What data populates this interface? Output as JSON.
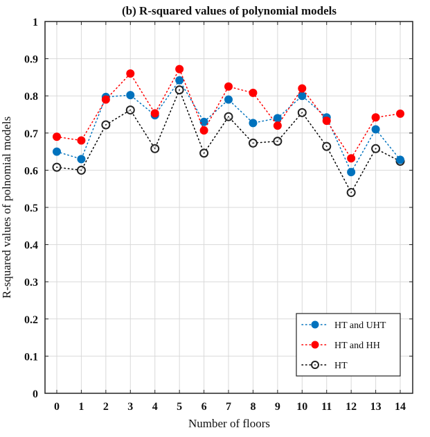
{
  "chart_data": {
    "type": "line",
    "title": "(b) R-squared values of polynomial models",
    "xlabel": "Number of floors",
    "ylabel": "R-squared values of polnomial models",
    "x": [
      0,
      1,
      2,
      3,
      4,
      5,
      6,
      7,
      8,
      9,
      10,
      11,
      12,
      13,
      14
    ],
    "xticks": [
      "0",
      "1",
      "2",
      "3",
      "4",
      "5",
      "6",
      "7",
      "8",
      "9",
      "10",
      "11",
      "12",
      "13",
      "14"
    ],
    "yticks": [
      "0",
      "0.1",
      "0.2",
      "0.3",
      "0.4",
      "0.5",
      "0.6",
      "0.7",
      "0.8",
      "0.9",
      "1"
    ],
    "xlim": [
      -0.5,
      15
    ],
    "ylim": [
      0,
      1
    ],
    "grid": true,
    "legend_position": "bottom-right",
    "series": [
      {
        "name": "HT and UHT",
        "color": "#0072BD",
        "marker": "filled-circle",
        "values": [
          0.65,
          0.63,
          0.797,
          0.802,
          0.748,
          0.842,
          0.73,
          0.79,
          0.727,
          0.74,
          0.8,
          0.742,
          0.595,
          0.71,
          0.628
        ]
      },
      {
        "name": "HT and HH",
        "color": "#FF0000",
        "marker": "filled-circle",
        "values": [
          0.69,
          0.68,
          0.79,
          0.86,
          0.753,
          0.872,
          0.707,
          0.825,
          0.808,
          0.72,
          0.82,
          0.733,
          0.632,
          0.742,
          0.752
        ]
      },
      {
        "name": "HT",
        "color": "#000000",
        "marker": "open-circle",
        "values": [
          0.608,
          0.6,
          0.722,
          0.762,
          0.658,
          0.816,
          0.646,
          0.744,
          0.673,
          0.678,
          0.755,
          0.664,
          0.54,
          0.658,
          0.624
        ]
      }
    ]
  }
}
